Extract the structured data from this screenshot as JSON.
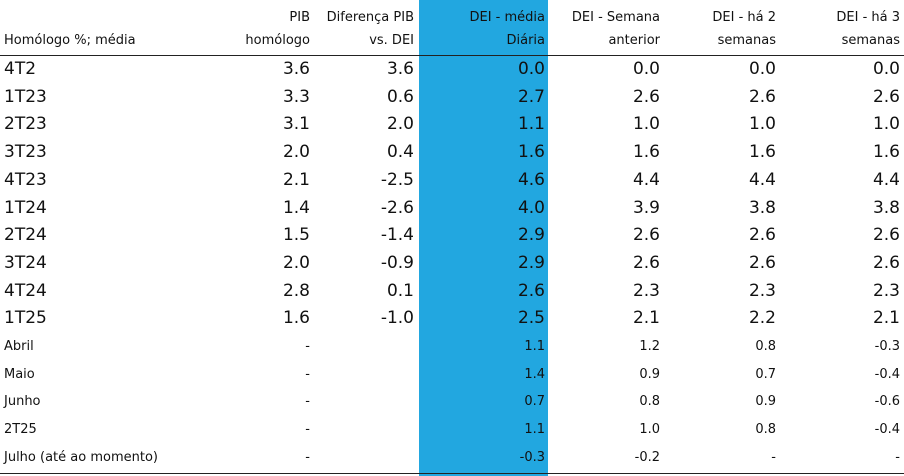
{
  "table": {
    "header": [
      [
        "Homólogo %; média"
      ],
      [
        "PIB",
        "homólogo"
      ],
      [
        "Diferença PIB",
        "vs. DEI"
      ],
      [
        "DEI - média",
        "Diária"
      ],
      [
        "DEI - Semana",
        "anterior"
      ],
      [
        "DEI - há 2",
        "semanas"
      ],
      [
        "DEI - há 3",
        "semanas"
      ]
    ],
    "rows": [
      [
        "4T2",
        "3.6",
        "3.6",
        "0.0",
        "0.0",
        "0.0",
        "0.0"
      ],
      [
        "1T23",
        "3.3",
        "0.6",
        "2.7",
        "2.6",
        "2.6",
        "2.6"
      ],
      [
        "2T23",
        "3.1",
        "2.0",
        "1.1",
        "1.0",
        "1.0",
        "1.0"
      ],
      [
        "3T23",
        "2.0",
        "0.4",
        "1.6",
        "1.6",
        "1.6",
        "1.6"
      ],
      [
        "4T23",
        "2.1",
        "-2.5",
        "4.6",
        "4.4",
        "4.4",
        "4.4"
      ],
      [
        "1T24",
        "1.4",
        "-2.6",
        "4.0",
        "3.9",
        "3.8",
        "3.8"
      ],
      [
        "2T24",
        "1.5",
        "-1.4",
        "2.9",
        "2.6",
        "2.6",
        "2.6"
      ],
      [
        "3T24",
        "2.0",
        "-0.9",
        "2.9",
        "2.6",
        "2.6",
        "2.6"
      ],
      [
        "4T24",
        "2.8",
        "0.1",
        "2.6",
        "2.3",
        "2.3",
        "2.3"
      ],
      [
        "1T25",
        "1.6",
        "-1.0",
        "2.5",
        "2.1",
        "2.2",
        "2.1"
      ],
      [
        "Abril",
        "-",
        null,
        "1.1",
        "1.2",
        "0.8",
        "-0.3"
      ],
      [
        "Maio",
        "-",
        null,
        "1.4",
        "0.9",
        "0.7",
        "-0.4"
      ],
      [
        "Junho",
        "-",
        null,
        "0.7",
        "0.8",
        "0.9",
        "-0.6"
      ],
      [
        "2T25",
        "-",
        null,
        "1.1",
        "1.0",
        "0.8",
        "-0.4"
      ],
      [
        "Julho (até ao momento)",
        "-",
        null,
        "-0.3",
        "-0.2",
        "-",
        "-"
      ]
    ]
  }
}
